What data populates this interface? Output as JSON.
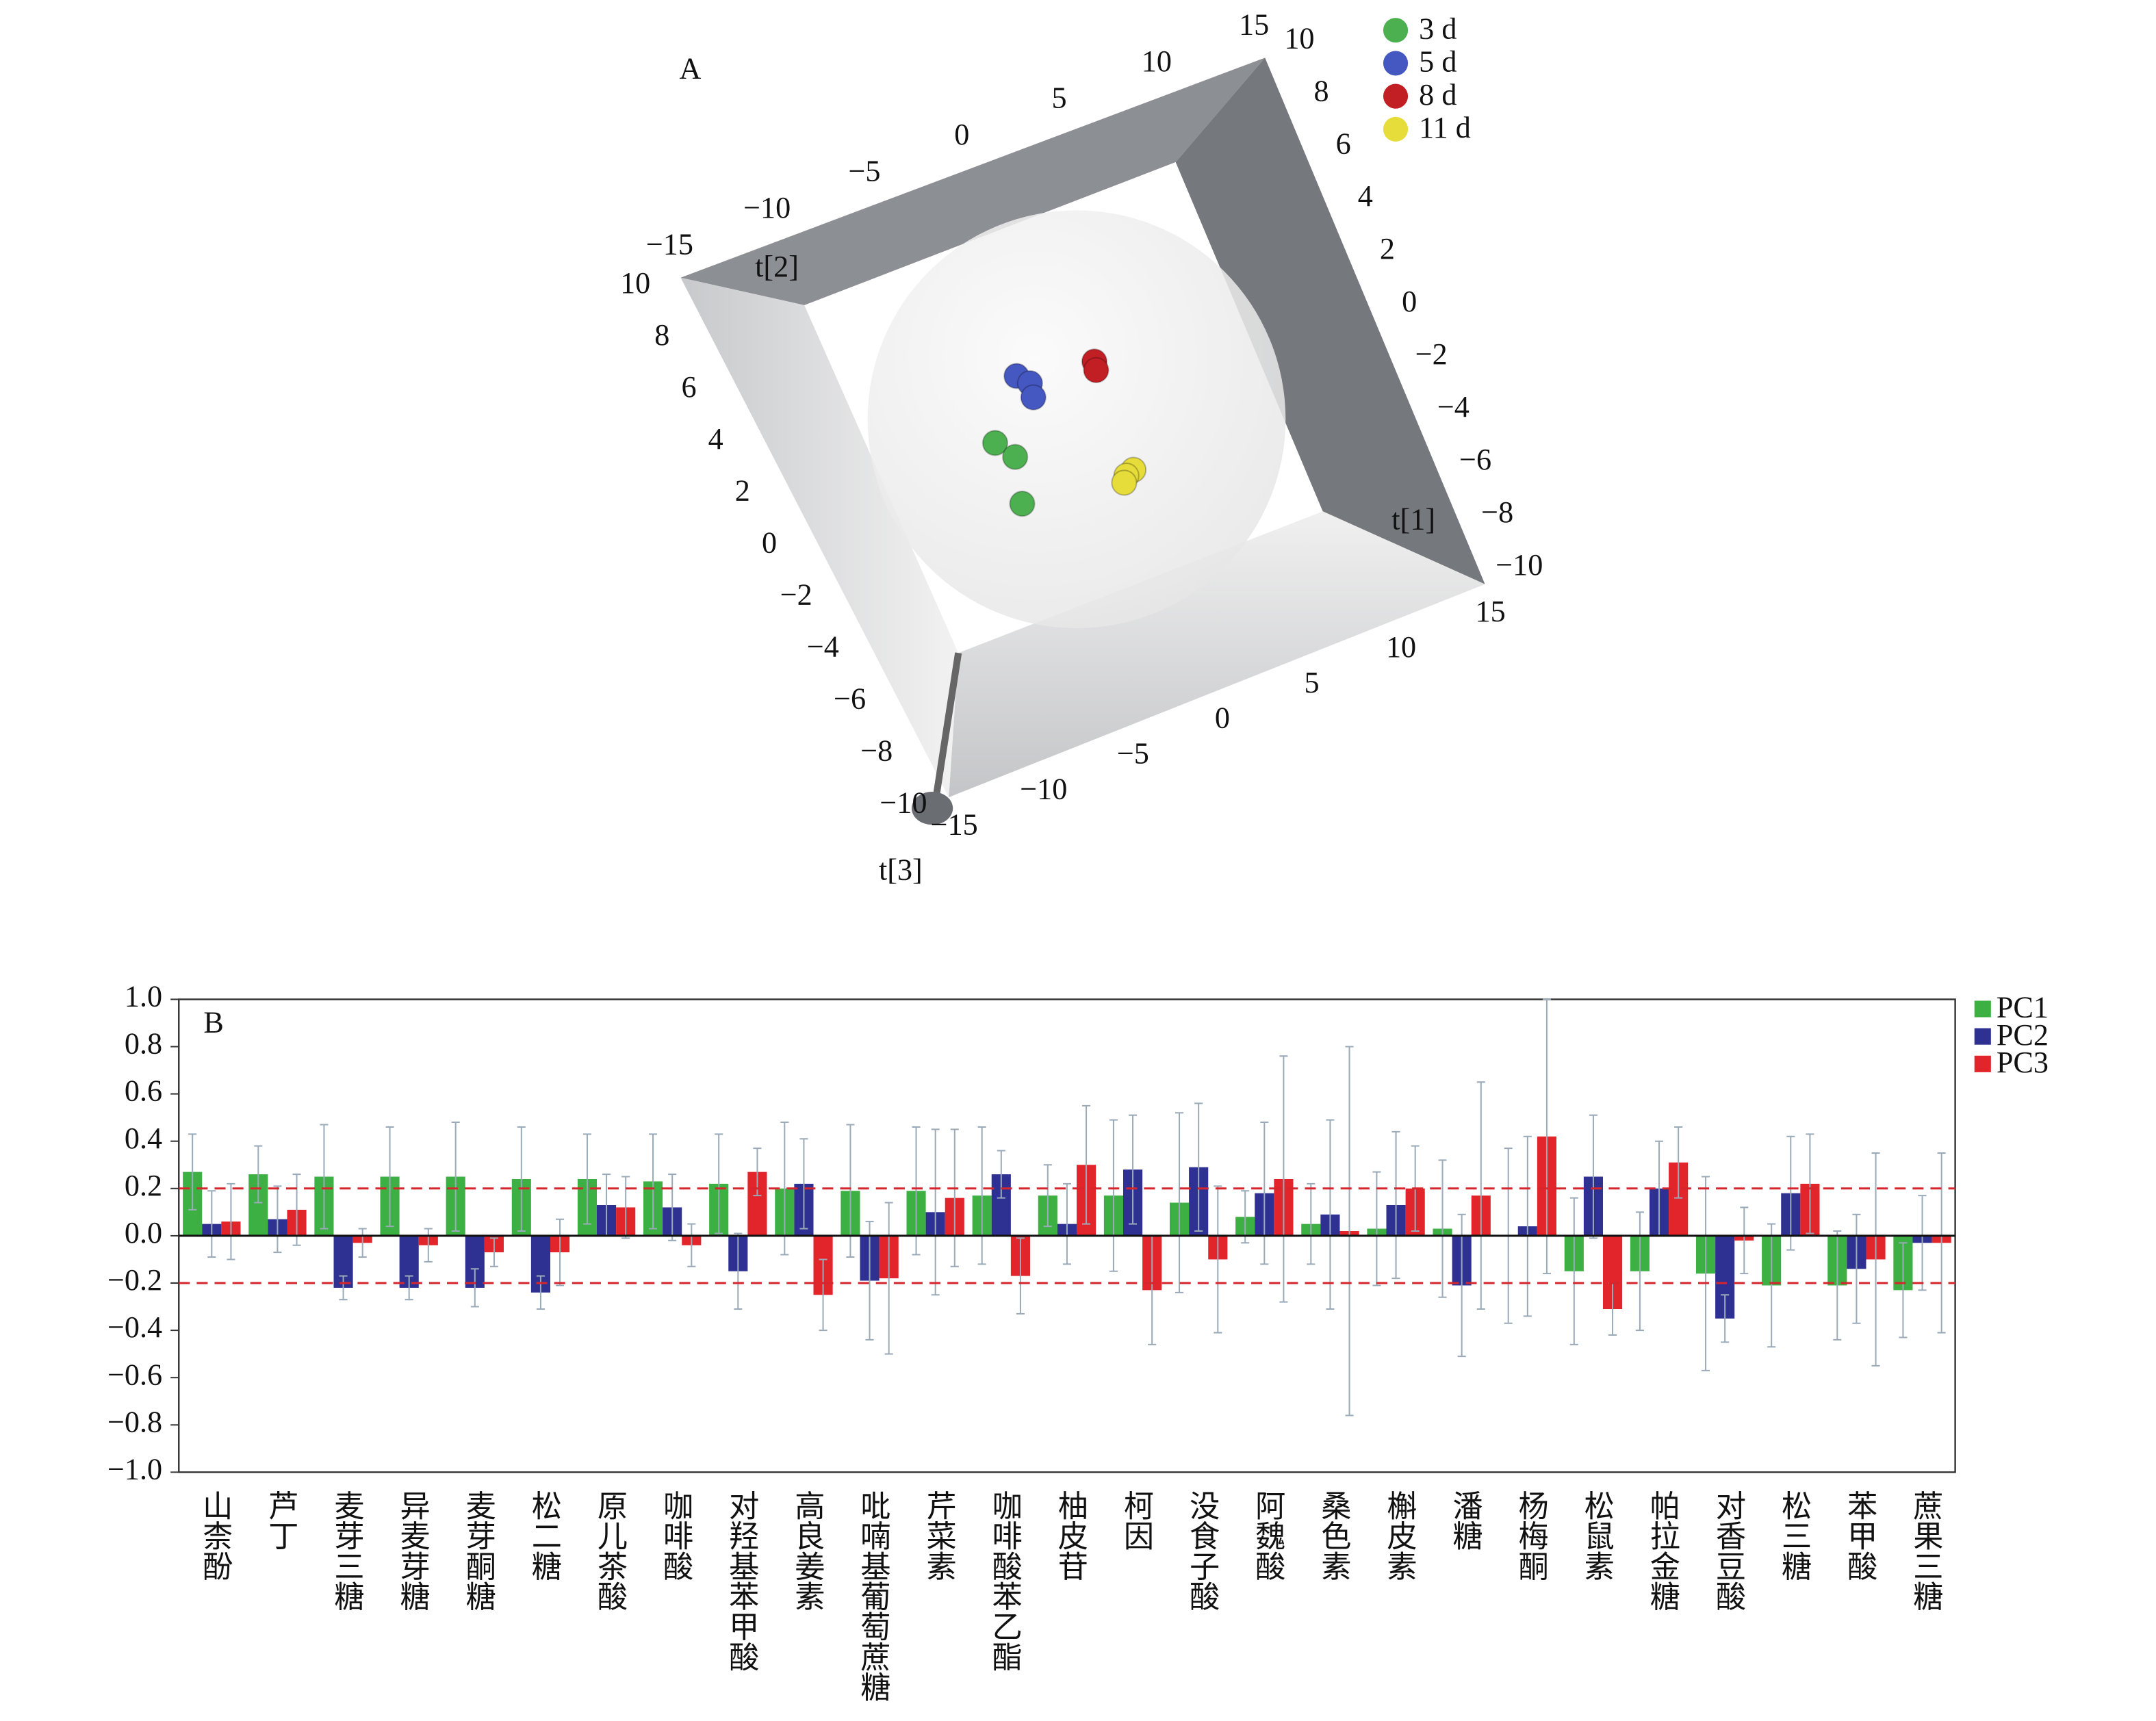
{
  "chart_data": [
    {
      "type": "scatter3d",
      "panel_label": "A",
      "xlabel": "t[2]",
      "ylabel": "t[1]",
      "zlabel": "t[3]",
      "xlim": [
        -15,
        15
      ],
      "xticks": [
        {
          "value": -15,
          "label": "−15"
        },
        {
          "value": -10,
          "label": "−10"
        },
        {
          "value": -5,
          "label": "−5"
        },
        0,
        5,
        10,
        15
      ],
      "ylim": [
        -10,
        10
      ],
      "yticks": [
        {
          "value": -10,
          "label": "−10"
        },
        {
          "value": -8,
          "label": "−8"
        },
        {
          "value": -6,
          "label": "−6"
        },
        {
          "value": -4,
          "label": "−4"
        },
        {
          "value": -2,
          "label": "−2"
        },
        0,
        2,
        4,
        6,
        8,
        10
      ],
      "zlim": [
        -10,
        10
      ],
      "zticks": [
        {
          "value": -10,
          "label": "−10"
        },
        {
          "value": -8,
          "label": "−8"
        },
        {
          "value": -6,
          "label": "−6"
        },
        {
          "value": -4,
          "label": "−4"
        },
        {
          "value": -2,
          "label": "−2"
        },
        0,
        2,
        4,
        6,
        8,
        10
      ],
      "series": [
        {
          "name": "3 d",
          "color": "#4cb050",
          "x": [
            -4.8,
            -4.2,
            -4.9
          ],
          "y": [
            0.8,
            0.1,
            -1.5
          ]
        },
        {
          "name": "5 d",
          "color": "#4557c0",
          "x": [
            -2.4,
            -1.95,
            -2.1
          ],
          "y": [
            2.7,
            2.3,
            1.8
          ]
        },
        {
          "name": "8 d",
          "color": "#c21f24",
          "x": [
            1.4,
            1.3
          ],
          "y": [
            2.2,
            1.9
          ]
        },
        {
          "name": "11 d",
          "color": "#e6dc3a",
          "x": [
            0.9,
            0.45,
            0.2
          ],
          "y": [
            -1.8,
            -1.9,
            -2.1
          ]
        }
      ]
    },
    {
      "type": "bar",
      "panel_label": "B",
      "categories": [
        "山柰酚",
        "芦丁",
        "麦芽三糖",
        "异麦芽糖",
        "麦芽酮糖",
        "松二糖",
        "原儿茶酸",
        "咖啡酸",
        "对羟基苯甲酸",
        "高良姜素",
        "吡喃基葡萄蔗糖",
        "芹菜素",
        "咖啡酸苯乙酯",
        "柚皮苷",
        "柯因",
        "没食子酸",
        "阿魏酸",
        "桑色素",
        "槲皮素",
        "潘糖",
        "杨梅酮",
        "松鼠素",
        "帕拉金糖",
        "对香豆酸",
        "松三糖",
        "苯甲酸",
        "蔗果三糖"
      ],
      "series": [
        {
          "name": "PC1",
          "color": "#3cb043",
          "values": [
            0.27,
            0.26,
            0.25,
            0.25,
            0.25,
            0.24,
            0.24,
            0.23,
            0.22,
            0.2,
            0.19,
            0.19,
            0.17,
            0.17,
            0.17,
            0.14,
            0.08,
            0.05,
            0.03,
            0.03,
            0.0,
            -0.15,
            -0.15,
            -0.16,
            -0.21,
            -0.21,
            -0.23
          ],
          "errors": [
            0.16,
            0.12,
            0.22,
            0.21,
            0.23,
            0.22,
            0.19,
            0.2,
            0.21,
            0.28,
            0.28,
            0.27,
            0.29,
            0.13,
            0.32,
            0.38,
            0.11,
            0.17,
            0.24,
            0.29,
            0.37,
            0.31,
            0.25,
            0.41,
            0.26,
            0.23,
            0.2
          ]
        },
        {
          "name": "PC2",
          "color": "#2e3192",
          "values": [
            0.05,
            0.07,
            -0.22,
            -0.22,
            -0.22,
            -0.24,
            0.13,
            0.12,
            -0.15,
            0.22,
            -0.19,
            0.1,
            0.26,
            0.05,
            0.28,
            0.29,
            0.18,
            0.09,
            0.13,
            -0.21,
            0.04,
            0.25,
            0.2,
            -0.35,
            0.18,
            -0.14,
            -0.03
          ],
          "errors": [
            0.14,
            0.14,
            0.05,
            0.05,
            0.08,
            0.07,
            0.13,
            0.14,
            0.16,
            0.19,
            0.25,
            0.35,
            0.1,
            0.17,
            0.23,
            0.27,
            0.3,
            0.4,
            0.31,
            0.3,
            0.38,
            0.26,
            0.2,
            0.1,
            0.24,
            0.23,
            0.2
          ]
        },
        {
          "name": "PC3",
          "color": "#e2242b",
          "values": [
            0.06,
            0.11,
            -0.03,
            -0.04,
            -0.07,
            -0.07,
            0.12,
            -0.04,
            0.27,
            -0.25,
            -0.18,
            0.16,
            -0.17,
            0.3,
            -0.23,
            -0.1,
            0.24,
            0.02,
            0.2,
            0.17,
            0.42,
            -0.31,
            0.31,
            -0.02,
            0.22,
            -0.1,
            -0.03
          ],
          "errors": [
            0.16,
            0.15,
            0.06,
            0.07,
            0.06,
            0.14,
            0.13,
            0.09,
            0.1,
            0.15,
            0.32,
            0.29,
            0.16,
            0.25,
            0.23,
            0.31,
            0.52,
            0.78,
            0.18,
            0.48,
            0.58,
            0.11,
            0.15,
            0.14,
            0.21,
            0.45,
            0.38
          ]
        }
      ],
      "ylim": [
        -1,
        1
      ],
      "yticks": [
        {
          "value": -1,
          "label": "−1.0"
        },
        {
          "value": -0.8,
          "label": "−0.8"
        },
        {
          "value": -0.6,
          "label": "−0.6"
        },
        {
          "value": -0.4,
          "label": "−0.4"
        },
        {
          "value": -0.2,
          "label": "−0.2"
        },
        {
          "value": 0,
          "label": "0.0"
        },
        0.2,
        0.4,
        0.6,
        0.8,
        {
          "value": 1,
          "label": "1.0"
        }
      ],
      "reference_lines": [
        0.2,
        -0.2
      ],
      "reference_color": "#d6262d"
    }
  ]
}
